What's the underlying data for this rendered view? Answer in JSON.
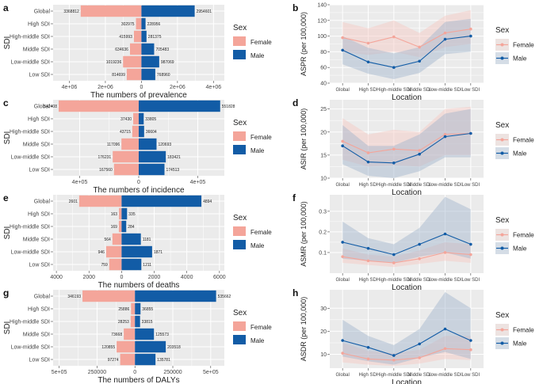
{
  "colors": {
    "female": "#F4A59A",
    "male": "#125CA6",
    "panel_bg": "#EBEBEB",
    "grid": "#FFFFFF",
    "female_ribbon": "#F6C8C1",
    "male_ribbon": "#9FB3CC"
  },
  "legend": {
    "title": "Sex",
    "female": "Female",
    "male": "Male"
  },
  "chart_data": [
    {
      "panel": "a",
      "type": "bar",
      "orientation": "horizontal-diverging",
      "ylabel": "SDI",
      "xlabel": "The numbers of prevalence",
      "categories": [
        "Global",
        "High SDI",
        "High-middle SDI",
        "Middle SDI",
        "Low-middle SDI",
        "Low SDI"
      ],
      "series": [
        {
          "name": "Female",
          "values": [
            3368812,
            302975,
            415993,
            634636,
            1019236,
            814699
          ],
          "labels": [
            "3368812",
            "302975",
            "415993",
            "634636",
            "1019236",
            "814699"
          ]
        },
        {
          "name": "Male",
          "values": [
            2954601,
            228956,
            281375,
            705483,
            987069,
            768960
          ],
          "labels": [
            "2954601",
            "228956",
            "281375",
            "705483",
            "987069",
            "768960"
          ]
        }
      ],
      "xlim": [
        -4900000,
        4600000
      ],
      "xticks": [
        -4000000,
        -2000000,
        0,
        2000000,
        4000000
      ],
      "xtick_labels": [
        "4e+06",
        "2e+06",
        "0",
        "2e+06",
        "4e+06"
      ]
    },
    {
      "panel": "c",
      "type": "bar",
      "orientation": "horizontal-diverging",
      "ylabel": "SDI",
      "xlabel": "The numbers of incidence",
      "categories": [
        "Global",
        "High SDI",
        "High-middle SDI",
        "Middle SDI",
        "Low-middle SDI",
        "Low SDI"
      ],
      "series": [
        {
          "name": "Female",
          "values": [
            542408,
            37430,
            43715,
            117096,
            176231,
            167560
          ],
          "labels": [
            "542408",
            "37430",
            "43715",
            "117096",
            "176231",
            "167560"
          ]
        },
        {
          "name": "Male",
          "values": [
            551828,
            33805,
            36604,
            120693,
            183421,
            174513
          ],
          "labels": [
            "551828",
            "33805",
            "36604",
            "120693",
            "183421",
            "174513"
          ]
        }
      ],
      "xlim": [
        -580000,
        580000
      ],
      "xticks": [
        -400000,
        0,
        400000
      ],
      "xtick_labels": [
        "4e+05",
        "0",
        "4e+05"
      ]
    },
    {
      "panel": "e",
      "type": "bar",
      "orientation": "horizontal-diverging",
      "ylabel": "SDI",
      "xlabel": "The numbers of deaths",
      "categories": [
        "Global",
        "High SDI",
        "High-middle SDI",
        "Middle SDI",
        "Low-middle SDI",
        "Low SDI"
      ],
      "series": [
        {
          "name": "Female",
          "values": [
            2601,
            163,
            169,
            564,
            946,
            759
          ],
          "labels": [
            "2601",
            "163",
            "169",
            "564",
            "946",
            "759"
          ]
        },
        {
          "name": "Male",
          "values": [
            4894,
            335,
            284,
            1181,
            1871,
            1211
          ],
          "labels": [
            "4894",
            "335",
            "284",
            "1181",
            "1871",
            "1211"
          ]
        }
      ],
      "xlim": [
        -4200,
        6300
      ],
      "xticks": [
        -4000,
        -2000,
        0,
        2000,
        4000,
        6000
      ],
      "xtick_labels": [
        "4000",
        "2000",
        "0",
        "2000",
        "4000",
        "6000"
      ]
    },
    {
      "panel": "g",
      "type": "bar",
      "orientation": "horizontal-diverging",
      "ylabel": "SDI",
      "xlabel": "The numbers of DALYs",
      "categories": [
        "Global",
        "High SDI",
        "High-middle SDI",
        "Middle SDI",
        "Low-middle SDI",
        "Low SDI"
      ],
      "series": [
        {
          "name": "Female",
          "values": [
            346193,
            25886,
            28253,
            73668,
            120855,
            97274
          ],
          "labels": [
            "346193",
            "25886",
            "28253",
            "73668",
            "120855",
            "97274"
          ]
        },
        {
          "name": "Male",
          "values": [
            535662,
            36855,
            33815,
            125573,
            203518,
            135781
          ],
          "labels": [
            "535662",
            "36855",
            "33815",
            "125573",
            "203518",
            "135781"
          ]
        }
      ],
      "xlim": [
        -540000,
        590000
      ],
      "xticks": [
        -500000,
        -250000,
        0,
        250000,
        500000
      ],
      "xtick_labels": [
        "5e+05",
        "250000",
        "0",
        "250000",
        "5e+05"
      ]
    },
    {
      "panel": "b",
      "type": "line",
      "with_ribbon": true,
      "xlabel": "Location",
      "ylabel": "ASPR (per 100,000)",
      "categories": [
        "Global",
        "High SDI",
        "High-middle SDI",
        "Middle SDI",
        "Low-middle SDI",
        "Low SDI"
      ],
      "series": [
        {
          "name": "Female",
          "values": [
            98,
            91,
            99,
            86,
            104,
            109
          ],
          "lower": [
            80,
            76,
            80,
            73,
            86,
            90
          ],
          "upper": [
            118,
            110,
            120,
            104,
            126,
            133
          ]
        },
        {
          "name": "Male",
          "values": [
            82,
            67,
            60,
            68,
            96,
            100
          ],
          "lower": [
            64,
            52,
            45,
            53,
            77,
            80
          ],
          "upper": [
            100,
            85,
            78,
            86,
            118,
            122
          ]
        }
      ],
      "ylim": [
        40,
        140
      ],
      "yticks": [
        40,
        60,
        80,
        100,
        120,
        140
      ]
    },
    {
      "panel": "d",
      "type": "line",
      "with_ribbon": true,
      "xlabel": "Location",
      "ylabel": "ASIR (per 100,000)",
      "categories": [
        "Global",
        "High SDI",
        "High-middle SDI",
        "Middle SDI",
        "Low-middle SDI",
        "Low SDI"
      ],
      "series": [
        {
          "name": "Female",
          "values": [
            18,
            15.5,
            16.3,
            16,
            19.5,
            19.7
          ],
          "lower": [
            14,
            12.5,
            12.8,
            12.5,
            15,
            15
          ],
          "upper": [
            23,
            19.5,
            20.5,
            20,
            25,
            25.5
          ]
        },
        {
          "name": "Male",
          "values": [
            17,
            13.5,
            13.3,
            15.2,
            19,
            19.7
          ],
          "lower": [
            13,
            10.5,
            10,
            11.5,
            14.5,
            14.5
          ],
          "upper": [
            21.5,
            17,
            17,
            19.5,
            24,
            25
          ]
        }
      ],
      "ylim": [
        10,
        27
      ],
      "yticks": [
        10,
        15,
        20,
        25
      ]
    },
    {
      "panel": "f",
      "type": "line",
      "with_ribbon": true,
      "xlabel": "Location",
      "ylabel": "ASMR (per 100,000)",
      "categories": [
        "Global",
        "High SDI",
        "High-middle SDI",
        "Middle SDI",
        "Low-middle SDI",
        "Low SDI"
      ],
      "series": [
        {
          "name": "Female",
          "values": [
            0.08,
            0.06,
            0.05,
            0.07,
            0.1,
            0.09
          ],
          "lower": [
            0.05,
            0.04,
            0.03,
            0.045,
            0.06,
            0.05
          ],
          "upper": [
            0.12,
            0.09,
            0.08,
            0.11,
            0.15,
            0.14
          ]
        },
        {
          "name": "Male",
          "values": [
            0.15,
            0.12,
            0.09,
            0.14,
            0.19,
            0.14
          ],
          "lower": [
            0.07,
            0.06,
            0.05,
            0.08,
            0.1,
            0.07
          ],
          "upper": [
            0.25,
            0.17,
            0.14,
            0.22,
            0.37,
            0.31
          ]
        }
      ],
      "ylim": [
        0,
        0.38
      ],
      "yticks": [
        0.1,
        0.2,
        0.3
      ]
    },
    {
      "panel": "h",
      "type": "line",
      "with_ribbon": true,
      "xlabel": "Location",
      "ylabel": "ASDR (per 100,000)",
      "categories": [
        "Global",
        "High SDI",
        "High-middle SDI",
        "Middle SDI",
        "Low-middle SDI",
        "Low SDI"
      ],
      "series": [
        {
          "name": "Female",
          "values": [
            10.5,
            8,
            7.5,
            8.5,
            12.5,
            12
          ],
          "lower": [
            6.5,
            5.5,
            5,
            6,
            8,
            7.5
          ],
          "upper": [
            15,
            11.5,
            10.5,
            12,
            18,
            18
          ]
        },
        {
          "name": "Male",
          "values": [
            16,
            13,
            9.5,
            14.5,
            21,
            16
          ],
          "lower": [
            9,
            7,
            5.5,
            8.5,
            11,
            8
          ],
          "upper": [
            25,
            18,
            14,
            21,
            37,
            30
          ]
        }
      ],
      "ylim": [
        4,
        38
      ],
      "yticks": [
        10,
        20,
        30
      ]
    }
  ]
}
